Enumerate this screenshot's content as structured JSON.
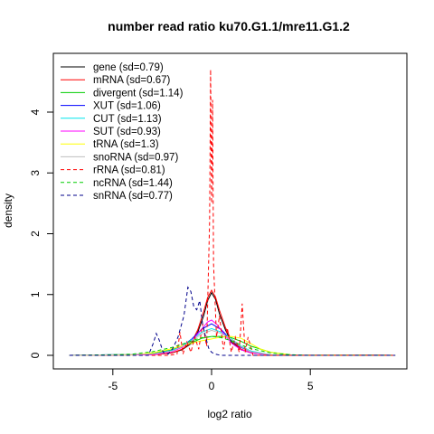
{
  "chart_data": {
    "type": "line",
    "title": "number read ratio ku70.G1.1/mre11.G1.2",
    "xlabel": "log2 ratio",
    "ylabel": "density",
    "xlim": [
      -7.5,
      9.5
    ],
    "ylim": [
      0,
      4.8
    ],
    "xticks": [
      -5,
      0,
      5
    ],
    "yticks": [
      0,
      1,
      2,
      3,
      4
    ],
    "grid": false,
    "legend_position": "top-left",
    "series": [
      {
        "name": "gene (sd=0.79)",
        "color": "#000000",
        "dash": "solid",
        "x": [
          -7.2,
          -3.0,
          -2.0,
          -1.5,
          -1.0,
          -0.7,
          -0.4,
          -0.2,
          0.0,
          0.2,
          0.4,
          0.7,
          1.0,
          1.5,
          2.0,
          3.0,
          9.3
        ],
        "y": [
          0,
          0.01,
          0.04,
          0.09,
          0.2,
          0.38,
          0.65,
          0.9,
          1.03,
          0.92,
          0.68,
          0.42,
          0.22,
          0.09,
          0.04,
          0.01,
          0
        ]
      },
      {
        "name": "mRNA (sd=0.67)",
        "color": "#ff0000",
        "dash": "solid",
        "x": [
          -7.2,
          -3.0,
          -2.0,
          -1.5,
          -1.0,
          -0.7,
          -0.4,
          -0.2,
          0.0,
          0.2,
          0.4,
          0.7,
          1.0,
          1.5,
          2.0,
          3.0,
          9.3
        ],
        "y": [
          0,
          0.01,
          0.04,
          0.1,
          0.22,
          0.42,
          0.72,
          0.95,
          1.07,
          0.96,
          0.74,
          0.46,
          0.25,
          0.1,
          0.04,
          0.01,
          0
        ]
      },
      {
        "name": "divergent (sd=1.14)",
        "color": "#00cd00",
        "dash": "solid",
        "x": [
          -7.2,
          -4.0,
          -3.0,
          -2.0,
          -1.0,
          -0.5,
          0.0,
          0.5,
          1.0,
          1.5,
          2.0,
          3.0,
          4.0,
          9.3
        ],
        "y": [
          0,
          0.01,
          0.03,
          0.09,
          0.21,
          0.28,
          0.31,
          0.31,
          0.29,
          0.23,
          0.15,
          0.05,
          0.01,
          0
        ]
      },
      {
        "name": "XUT (sd=1.06)",
        "color": "#0000ff",
        "dash": "solid",
        "x": [
          -7.2,
          -3.0,
          -2.0,
          -1.5,
          -1.0,
          -0.5,
          0.0,
          0.5,
          1.0,
          1.5,
          2.0,
          3.0,
          9.3
        ],
        "y": [
          0,
          0.02,
          0.08,
          0.15,
          0.27,
          0.43,
          0.52,
          0.42,
          0.25,
          0.13,
          0.06,
          0.01,
          0
        ]
      },
      {
        "name": "CUT (sd=1.13)",
        "color": "#00e5ee",
        "dash": "solid",
        "x": [
          -7.2,
          -3.0,
          -2.0,
          -1.5,
          -1.0,
          -0.5,
          0.0,
          0.5,
          1.0,
          1.5,
          2.0,
          3.0,
          9.3
        ],
        "y": [
          0,
          0.02,
          0.08,
          0.15,
          0.26,
          0.38,
          0.44,
          0.38,
          0.27,
          0.15,
          0.07,
          0.01,
          0
        ]
      },
      {
        "name": "SUT (sd=0.93)",
        "color": "#ff00ff",
        "dash": "solid",
        "x": [
          -7.2,
          -3.0,
          -2.0,
          -1.5,
          -1.0,
          -0.5,
          -0.2,
          0.0,
          0.3,
          0.6,
          1.0,
          1.5,
          2.0,
          3.0,
          9.3
        ],
        "y": [
          0,
          0.01,
          0.06,
          0.13,
          0.24,
          0.43,
          0.55,
          0.58,
          0.5,
          0.36,
          0.2,
          0.09,
          0.04,
          0.01,
          0
        ]
      },
      {
        "name": "tRNA (sd=1.3)",
        "color": "#ffff00",
        "dash": "solid",
        "x": [
          -7.2,
          -4.0,
          -3.0,
          -2.0,
          -1.0,
          -0.5,
          0.0,
          0.5,
          1.0,
          1.5,
          2.0,
          2.5,
          3.0,
          4.0,
          9.3
        ],
        "y": [
          0,
          0.01,
          0.04,
          0.11,
          0.2,
          0.24,
          0.27,
          0.3,
          0.31,
          0.28,
          0.19,
          0.1,
          0.05,
          0.01,
          0
        ]
      },
      {
        "name": "snoRNA (sd=0.97)",
        "color": "#bebebe",
        "dash": "solid",
        "x": [
          -7.2,
          -3.0,
          -2.0,
          -1.5,
          -1.0,
          -0.5,
          0.0,
          0.5,
          1.0,
          1.5,
          2.0,
          3.0,
          9.3
        ],
        "y": [
          0,
          0.02,
          0.07,
          0.14,
          0.24,
          0.35,
          0.41,
          0.36,
          0.26,
          0.14,
          0.06,
          0.01,
          0
        ]
      },
      {
        "name": "rRNA (sd=0.81)",
        "color": "#ff0000",
        "dash": "dashed",
        "x": [
          -7.2,
          -2.2,
          -1.75,
          -1.6,
          -1.45,
          -1.25,
          -1.05,
          -0.85,
          -0.65,
          -0.45,
          -0.25,
          -0.1,
          -0.05,
          0.0,
          0.05,
          0.1,
          0.25,
          0.4,
          0.6,
          0.8,
          1.0,
          1.2,
          1.4,
          1.55,
          1.7,
          1.85,
          2.1,
          9.3
        ],
        "y": [
          0,
          0,
          0.02,
          0.38,
          0.02,
          0.22,
          0.05,
          0.3,
          0.1,
          0.52,
          0.15,
          2.2,
          4.7,
          2.5,
          4.2,
          1.5,
          0.3,
          0.65,
          0.1,
          0.45,
          0.05,
          0.3,
          0.05,
          0.85,
          0.05,
          0.3,
          0,
          0
        ]
      },
      {
        "name": "ncRNA (sd=1.44)",
        "color": "#00cd00",
        "dash": "dashed",
        "x": [
          -7.2,
          -5.0,
          -4.0,
          -3.0,
          -2.0,
          -1.5,
          -1.0,
          -0.5,
          0.0,
          0.5,
          1.0,
          1.5,
          2.0,
          3.0,
          4.0,
          5.0,
          9.3
        ],
        "y": [
          0,
          0.01,
          0.02,
          0.06,
          0.13,
          0.18,
          0.24,
          0.29,
          0.31,
          0.29,
          0.24,
          0.17,
          0.11,
          0.04,
          0.01,
          0,
          0
        ]
      },
      {
        "name": "snRNA (sd=0.77)",
        "color": "#00008b",
        "dash": "dashed",
        "x": [
          -7.2,
          -3.2,
          -2.95,
          -2.8,
          -2.65,
          -2.45,
          -2.2,
          -1.95,
          -1.7,
          -1.4,
          -1.2,
          -1.05,
          -0.9,
          -0.75,
          -0.6,
          -0.45,
          -0.3,
          -0.15,
          0.0,
          0.2,
          0.45,
          0.7,
          1.0,
          9.3
        ],
        "y": [
          0,
          0,
          0.2,
          0.36,
          0.25,
          0.05,
          0.02,
          0.12,
          0.3,
          0.65,
          1.12,
          1.05,
          0.8,
          0.75,
          0.9,
          0.5,
          0.3,
          0.12,
          0.05,
          0.02,
          0,
          0,
          0,
          0
        ]
      }
    ]
  }
}
